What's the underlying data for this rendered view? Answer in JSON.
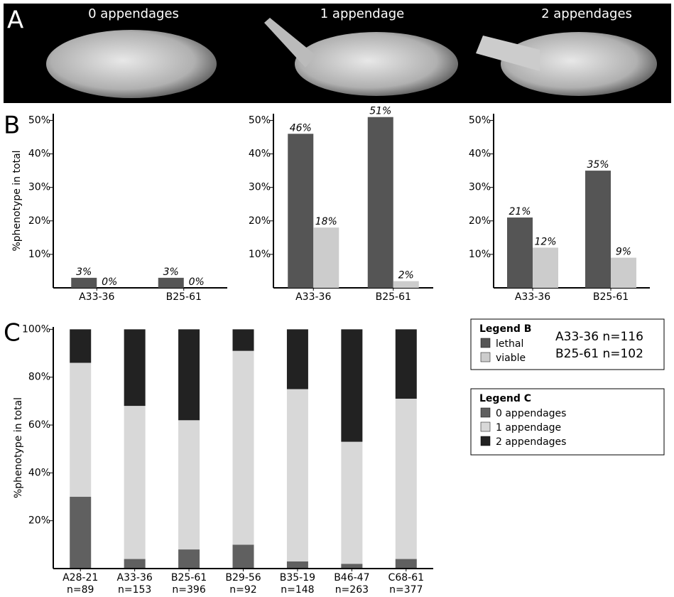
{
  "panel_labels": [
    "A",
    "B",
    "C"
  ],
  "images": [
    "0 appendages",
    "1 appendage",
    "2 appendages"
  ],
  "legend_b": {
    "title": "Legend B",
    "notes": [
      "A33-36 n=116",
      "B25-61 n=102"
    ]
  },
  "legend_c": {
    "title": "Legend C"
  },
  "chart_data": [
    {
      "type": "bar",
      "ylabel": "%phenotype in total",
      "categories": [
        "A33-36",
        "B25-61"
      ],
      "series": [
        {
          "name": "lethal",
          "color": "#555555",
          "values": [
            3,
            3
          ],
          "value_labels": [
            "3%",
            "3%"
          ]
        },
        {
          "name": "viable",
          "color": "#cccccc",
          "values": [
            0,
            0
          ],
          "value_labels": [
            "0%",
            "0%"
          ]
        }
      ],
      "ylim": [
        0,
        52
      ],
      "yticks": [
        {
          "value": 10,
          "label": "10%"
        },
        {
          "value": 20,
          "label": "20%"
        },
        {
          "value": 30,
          "label": "30%"
        },
        {
          "value": 40,
          "label": "40%"
        },
        {
          "value": 50,
          "label": "50%"
        }
      ]
    },
    {
      "type": "bar",
      "categories": [
        "A33-36",
        "B25-61"
      ],
      "series": [
        {
          "name": "lethal",
          "color": "#555555",
          "values": [
            46,
            51
          ],
          "value_labels": [
            "46%",
            "51%"
          ]
        },
        {
          "name": "viable",
          "color": "#cccccc",
          "values": [
            18,
            2
          ],
          "value_labels": [
            "18%",
            "2%"
          ]
        }
      ],
      "ylim": [
        0,
        52
      ],
      "yticks": [
        {
          "value": 10,
          "label": "10%"
        },
        {
          "value": 20,
          "label": "20%"
        },
        {
          "value": 30,
          "label": "30%"
        },
        {
          "value": 40,
          "label": "40%"
        },
        {
          "value": 50,
          "label": "50%"
        }
      ]
    },
    {
      "type": "bar",
      "categories": [
        "A33-36",
        "B25-61"
      ],
      "series": [
        {
          "name": "lethal",
          "color": "#555555",
          "values": [
            21,
            35
          ],
          "value_labels": [
            "21%",
            "35%"
          ]
        },
        {
          "name": "viable",
          "color": "#cccccc",
          "values": [
            12,
            9
          ],
          "value_labels": [
            "12%",
            "9%"
          ]
        }
      ],
      "ylim": [
        0,
        52
      ],
      "yticks": [
        {
          "value": 10,
          "label": "10%"
        },
        {
          "value": 20,
          "label": "20%"
        },
        {
          "value": 30,
          "label": "30%"
        },
        {
          "value": 40,
          "label": "40%"
        },
        {
          "value": 50,
          "label": "50%"
        }
      ]
    },
    {
      "type": "stacked_bar",
      "ylabel": "%phenotype in total",
      "categories": [
        "A28-21",
        "A33-36",
        "B25-61",
        "B29-56",
        "B35-19",
        "B46-47",
        "C68-61"
      ],
      "n_labels": [
        "n=89",
        "n=153",
        "n=396",
        "n=92",
        "n=148",
        "n=263",
        "n=377"
      ],
      "series": [
        {
          "name": "0 appendages",
          "color": "#606060",
          "values": [
            30,
            4,
            8,
            10,
            3,
            2,
            4
          ]
        },
        {
          "name": "1 appendage",
          "color": "#d8d8d8",
          "values": [
            56,
            64,
            54,
            81,
            72,
            51,
            67
          ]
        },
        {
          "name": "2 appendages",
          "color": "#222222",
          "values": [
            14,
            32,
            38,
            9,
            25,
            47,
            29
          ]
        }
      ],
      "ylim": [
        0,
        101
      ],
      "yticks": [
        {
          "value": 20,
          "label": "20%"
        },
        {
          "value": 40,
          "label": "40%"
        },
        {
          "value": 60,
          "label": "60%"
        },
        {
          "value": 80,
          "label": "80%"
        },
        {
          "value": 100,
          "label": "100%"
        }
      ]
    }
  ]
}
